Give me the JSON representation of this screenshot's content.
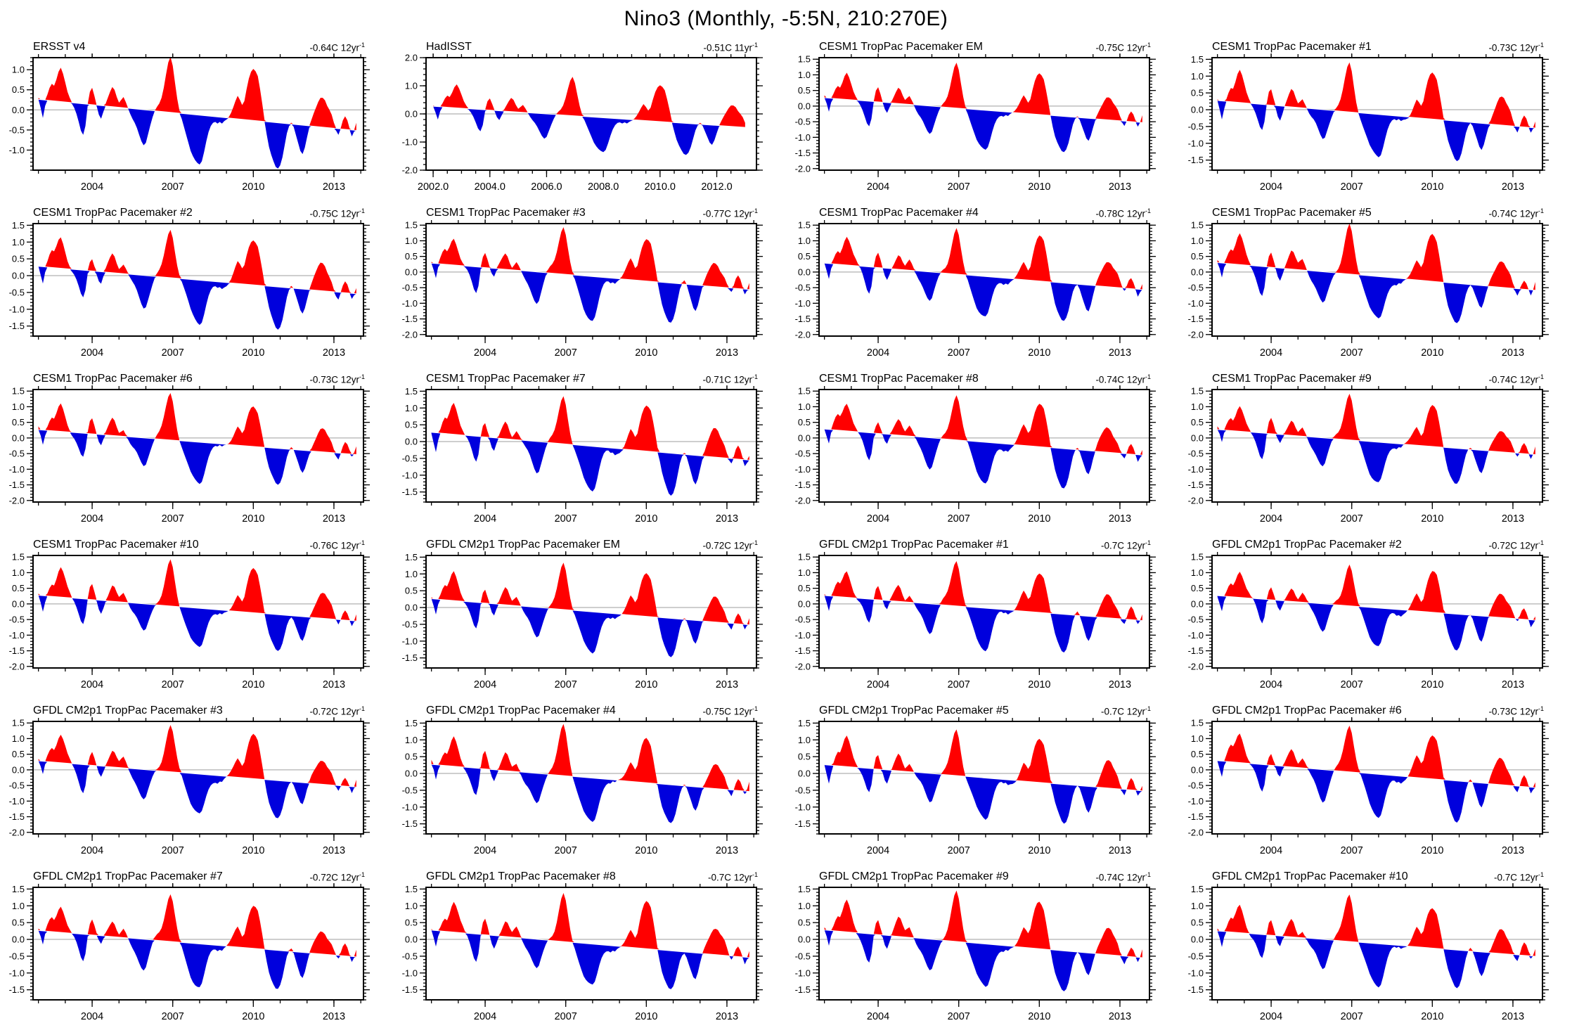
{
  "page": {
    "title": "Nino3 (Monthly, -5:5N, 210:270E)"
  },
  "chart_data": {
    "type": "area",
    "title": "Nino3 (Monthly, -5:5N, 210:270E)",
    "x_start_year": 2002.0,
    "x_step_years": 0.08333,
    "grid": "off",
    "legend": "none",
    "fill_rule": "red above linear trend line, blue below linear trend line",
    "colors": {
      "positive_fill": "#ff0000",
      "negative_fill": "#0000dd",
      "zero_line": "#b0b0b0",
      "trend_gap_line": "#ffffff",
      "frame": "#000000"
    },
    "x_axis_12yr": {
      "range": [
        2001.8,
        2014.1
      ],
      "major_ticks": [
        2004,
        2007,
        2010,
        2013
      ],
      "minor_step_years": 1,
      "label_format": "integer"
    },
    "x_axis_11yr": {
      "range": [
        2001.75,
        2013.4
      ],
      "major_ticks": [
        2002.0,
        2004.0,
        2006.0,
        2008.0,
        2010.0,
        2012.0
      ],
      "minor_step_years": 0.5,
      "label_format": "one_decimal"
    },
    "base_monthly_anomaly_C": [
      0.3,
      0.05,
      -0.2,
      0.1,
      0.38,
      0.55,
      0.65,
      0.6,
      0.75,
      0.95,
      1.05,
      0.9,
      0.68,
      0.45,
      0.3,
      0.15,
      0.05,
      -0.1,
      -0.3,
      -0.52,
      -0.62,
      -0.4,
      0.1,
      0.45,
      0.55,
      0.35,
      0.1,
      -0.12,
      -0.22,
      -0.05,
      0.15,
      0.3,
      0.45,
      0.57,
      0.5,
      0.32,
      0.18,
      0.25,
      0.32,
      0.2,
      0.05,
      -0.1,
      -0.22,
      -0.32,
      -0.45,
      -0.62,
      -0.78,
      -0.88,
      -0.82,
      -0.6,
      -0.38,
      -0.18,
      -0.02,
      0.08,
      0.16,
      0.3,
      0.55,
      0.88,
      1.18,
      1.32,
      1.1,
      0.68,
      0.28,
      -0.02,
      -0.22,
      -0.42,
      -0.62,
      -0.82,
      -1.02,
      -1.15,
      -1.25,
      -1.32,
      -1.36,
      -1.28,
      -1.05,
      -0.78,
      -0.55,
      -0.4,
      -0.32,
      -0.3,
      -0.34,
      -0.3,
      -0.34,
      -0.28,
      -0.24,
      -0.18,
      -0.08,
      0.06,
      0.22,
      0.35,
      0.25,
      0.12,
      0.22,
      0.52,
      0.78,
      0.95,
      1.02,
      0.96,
      0.84,
      0.52,
      0.15,
      -0.25,
      -0.62,
      -0.92,
      -1.12,
      -1.28,
      -1.42,
      -1.46,
      -1.38,
      -1.18,
      -0.88,
      -0.58,
      -0.4,
      -0.32,
      -0.42,
      -0.62,
      -0.82,
      -1.02,
      -1.1,
      -0.94,
      -0.68,
      -0.44,
      -0.24,
      -0.08,
      0.06,
      0.2,
      0.3,
      0.3,
      0.24,
      0.1,
      0.0,
      -0.12,
      -0.32,
      -0.52,
      -0.62,
      -0.46,
      -0.26,
      -0.16,
      -0.26,
      -0.46,
      -0.66,
      -0.54,
      -0.32
    ],
    "panels": [
      {
        "title": "ERSST v4",
        "trend": "-0.64C 12yr",
        "trend_sup": "-1",
        "x_style": "twelve",
        "months": 143,
        "scale": 1.0,
        "noise": 0.0,
        "seed": 0,
        "ylim": [
          -1.5,
          1.3
        ],
        "y_majors": [
          1.0,
          0.5,
          0.0,
          -0.5,
          -1.0
        ],
        "y_minor_step": 0.1
      },
      {
        "title": "HadISST",
        "trend": "-0.51C 11yr",
        "trend_sup": "-1",
        "x_style": "eleven",
        "months": 133,
        "scale": 1.0,
        "noise": 0.0,
        "seed": 0,
        "ylim": [
          -2.0,
          2.0
        ],
        "y_majors": [
          2.0,
          1.0,
          0.0,
          -1.0,
          -2.0
        ],
        "y_minor_step": 0.2
      },
      {
        "title": "CESM1 TropPac Pacemaker EM",
        "trend": "-0.75C 12yr",
        "trend_sup": "-1",
        "x_style": "twelve",
        "months": 143,
        "scale": 1.03,
        "noise": 0.02,
        "seed": 1,
        "ylim": [
          -2.05,
          1.55
        ],
        "y_majors": [
          1.5,
          1.0,
          0.5,
          0.0,
          -0.5,
          -1.0,
          -1.5,
          -2.0
        ],
        "y_minor_step": 0.1
      },
      {
        "title": "CESM1 TropPac Pacemaker #1",
        "trend": "-0.73C 12yr",
        "trend_sup": "-1",
        "x_style": "twelve",
        "months": 143,
        "scale": 1.08,
        "noise": 0.05,
        "seed": 2,
        "ylim": [
          -1.8,
          1.55
        ],
        "y_majors": [
          1.5,
          1.0,
          0.5,
          0.0,
          -0.5,
          -1.0,
          -1.5
        ],
        "y_minor_step": 0.1
      },
      {
        "title": "CESM1 TropPac Pacemaker #2",
        "trend": "-0.75C 12yr",
        "trend_sup": "-1",
        "x_style": "twelve",
        "months": 143,
        "scale": 1.04,
        "noise": 0.05,
        "seed": 3,
        "ylim": [
          -1.8,
          1.55
        ],
        "y_majors": [
          1.5,
          1.0,
          0.5,
          0.0,
          -0.5,
          -1.0,
          -1.5
        ],
        "y_minor_step": 0.1
      },
      {
        "title": "CESM1 TropPac Pacemaker #3",
        "trend": "-0.77C 12yr",
        "trend_sup": "-1",
        "x_style": "twelve",
        "months": 143,
        "scale": 1.1,
        "noise": 0.05,
        "seed": 4,
        "ylim": [
          -2.05,
          1.55
        ],
        "y_majors": [
          1.5,
          1.0,
          0.5,
          0.0,
          -0.5,
          -1.0,
          -1.5,
          -2.0
        ],
        "y_minor_step": 0.1
      },
      {
        "title": "CESM1 TropPac Pacemaker #4",
        "trend": "-0.78C 12yr",
        "trend_sup": "-1",
        "x_style": "twelve",
        "months": 143,
        "scale": 1.1,
        "noise": 0.05,
        "seed": 5,
        "ylim": [
          -2.05,
          1.55
        ],
        "y_majors": [
          1.5,
          1.0,
          0.5,
          0.0,
          -0.5,
          -1.0,
          -1.5,
          -2.0
        ],
        "y_minor_step": 0.1
      },
      {
        "title": "CESM1 TropPac Pacemaker #5",
        "trend": "-0.74C 12yr",
        "trend_sup": "-1",
        "x_style": "twelve",
        "months": 143,
        "scale": 1.12,
        "noise": 0.05,
        "seed": 6,
        "ylim": [
          -2.05,
          1.55
        ],
        "y_majors": [
          1.5,
          1.0,
          0.5,
          0.0,
          -0.5,
          -1.0,
          -1.5,
          -2.0
        ],
        "y_minor_step": 0.1
      },
      {
        "title": "CESM1 TropPac Pacemaker #6",
        "trend": "-0.73C 12yr",
        "trend_sup": "-1",
        "x_style": "twelve",
        "months": 143,
        "scale": 1.05,
        "noise": 0.05,
        "seed": 7,
        "ylim": [
          -2.05,
          1.55
        ],
        "y_majors": [
          1.5,
          1.0,
          0.5,
          0.0,
          -0.5,
          -1.0,
          -1.5,
          -2.0
        ],
        "y_minor_step": 0.1
      },
      {
        "title": "CESM1 TropPac Pacemaker #7",
        "trend": "-0.71C 12yr",
        "trend_sup": "-1",
        "x_style": "twelve",
        "months": 143,
        "scale": 1.09,
        "noise": 0.05,
        "seed": 8,
        "ylim": [
          -1.8,
          1.55
        ],
        "y_majors": [
          1.5,
          1.0,
          0.5,
          0.0,
          -0.5,
          -1.0,
          -1.5
        ],
        "y_minor_step": 0.1
      },
      {
        "title": "CESM1 TropPac Pacemaker #8",
        "trend": "-0.74C 12yr",
        "trend_sup": "-1",
        "x_style": "twelve",
        "months": 143,
        "scale": 1.05,
        "noise": 0.05,
        "seed": 9,
        "ylim": [
          -2.05,
          1.55
        ],
        "y_majors": [
          1.5,
          1.0,
          0.5,
          0.0,
          -0.5,
          -1.0,
          -1.5,
          -2.0
        ],
        "y_minor_step": 0.1
      },
      {
        "title": "CESM1 TropPac Pacemaker #9",
        "trend": "-0.74C 12yr",
        "trend_sup": "-1",
        "x_style": "twelve",
        "months": 143,
        "scale": 1.04,
        "noise": 0.05,
        "seed": 10,
        "ylim": [
          -2.05,
          1.55
        ],
        "y_majors": [
          1.5,
          1.0,
          0.5,
          0.0,
          -0.5,
          -1.0,
          -1.5,
          -2.0
        ],
        "y_minor_step": 0.1
      },
      {
        "title": "CESM1 TropPac Pacemaker #10",
        "trend": "-0.76C 12yr",
        "trend_sup": "-1",
        "x_style": "twelve",
        "months": 143,
        "scale": 1.08,
        "noise": 0.05,
        "seed": 11,
        "ylim": [
          -2.05,
          1.55
        ],
        "y_majors": [
          1.5,
          1.0,
          0.5,
          0.0,
          -0.5,
          -1.0,
          -1.5,
          -2.0
        ],
        "y_minor_step": 0.1
      },
      {
        "title": "GFDL CM2p1 TropPac Pacemaker EM",
        "trend": "-0.72C 12yr",
        "trend_sup": "-1",
        "x_style": "twelve",
        "months": 143,
        "scale": 1.0,
        "noise": 0.02,
        "seed": 12,
        "ylim": [
          -1.8,
          1.55
        ],
        "y_majors": [
          1.5,
          1.0,
          0.5,
          0.0,
          -0.5,
          -1.0,
          -1.5
        ],
        "y_minor_step": 0.1
      },
      {
        "title": "GFDL CM2p1 TropPac Pacemaker #1",
        "trend": "-0.7C 12yr",
        "trend_sup": "-1",
        "x_style": "twelve",
        "months": 143,
        "scale": 1.05,
        "noise": 0.05,
        "seed": 13,
        "ylim": [
          -2.05,
          1.55
        ],
        "y_majors": [
          1.5,
          1.0,
          0.5,
          0.0,
          -0.5,
          -1.0,
          -1.5,
          -2.0
        ],
        "y_minor_step": 0.1
      },
      {
        "title": "GFDL CM2p1 TropPac Pacemaker #2",
        "trend": "-0.72C 12yr",
        "trend_sup": "-1",
        "x_style": "twelve",
        "months": 143,
        "scale": 1.02,
        "noise": 0.05,
        "seed": 14,
        "ylim": [
          -2.05,
          1.55
        ],
        "y_majors": [
          1.5,
          1.0,
          0.5,
          0.0,
          -0.5,
          -1.0,
          -1.5,
          -2.0
        ],
        "y_minor_step": 0.1
      },
      {
        "title": "GFDL CM2p1 TropPac Pacemaker #3",
        "trend": "-0.72C 12yr",
        "trend_sup": "-1",
        "x_style": "twelve",
        "months": 143,
        "scale": 1.05,
        "noise": 0.05,
        "seed": 15,
        "ylim": [
          -2.05,
          1.55
        ],
        "y_majors": [
          1.5,
          1.0,
          0.5,
          0.0,
          -0.5,
          -1.0,
          -1.5,
          -2.0
        ],
        "y_minor_step": 0.1
      },
      {
        "title": "GFDL CM2p1 TropPac Pacemaker #4",
        "trend": "-0.75C 12yr",
        "trend_sup": "-1",
        "x_style": "twelve",
        "months": 143,
        "scale": 1.06,
        "noise": 0.05,
        "seed": 16,
        "ylim": [
          -1.8,
          1.55
        ],
        "y_majors": [
          1.5,
          1.0,
          0.5,
          0.0,
          -0.5,
          -1.0,
          -1.5
        ],
        "y_minor_step": 0.1
      },
      {
        "title": "GFDL CM2p1 TropPac Pacemaker #5",
        "trend": "-0.7C 12yr",
        "trend_sup": "-1",
        "x_style": "twelve",
        "months": 143,
        "scale": 1.03,
        "noise": 0.05,
        "seed": 17,
        "ylim": [
          -1.8,
          1.55
        ],
        "y_majors": [
          1.5,
          1.0,
          0.5,
          0.0,
          -0.5,
          -1.0,
          -1.5
        ],
        "y_minor_step": 0.1
      },
      {
        "title": "GFDL CM2p1 TropPac Pacemaker #6",
        "trend": "-0.73C 12yr",
        "trend_sup": "-1",
        "x_style": "twelve",
        "months": 143,
        "scale": 1.09,
        "noise": 0.05,
        "seed": 18,
        "ylim": [
          -2.05,
          1.55
        ],
        "y_majors": [
          1.5,
          1.0,
          0.5,
          0.0,
          -0.5,
          -1.0,
          -1.5,
          -2.0
        ],
        "y_minor_step": 0.1
      },
      {
        "title": "GFDL CM2p1 TropPac Pacemaker #7",
        "trend": "-0.72C 12yr",
        "trend_sup": "-1",
        "x_style": "twelve",
        "months": 143,
        "scale": 1.02,
        "noise": 0.05,
        "seed": 19,
        "ylim": [
          -1.8,
          1.55
        ],
        "y_majors": [
          1.5,
          1.0,
          0.5,
          0.0,
          -0.5,
          -1.0,
          -1.5
        ],
        "y_minor_step": 0.1
      },
      {
        "title": "GFDL CM2p1 TropPac Pacemaker #8",
        "trend": "-0.7C 12yr",
        "trend_sup": "-1",
        "x_style": "twelve",
        "months": 143,
        "scale": 1.06,
        "noise": 0.05,
        "seed": 20,
        "ylim": [
          -1.8,
          1.55
        ],
        "y_majors": [
          1.5,
          1.0,
          0.5,
          0.0,
          -0.5,
          -1.0,
          -1.5
        ],
        "y_minor_step": 0.1
      },
      {
        "title": "GFDL CM2p1 TropPac Pacemaker #9",
        "trend": "-0.74C 12yr",
        "trend_sup": "-1",
        "x_style": "twelve",
        "months": 143,
        "scale": 1.05,
        "noise": 0.05,
        "seed": 21,
        "ylim": [
          -1.8,
          1.55
        ],
        "y_majors": [
          1.5,
          1.0,
          0.5,
          0.0,
          -0.5,
          -1.0,
          -1.5
        ],
        "y_minor_step": 0.1
      },
      {
        "title": "GFDL CM2p1 TropPac Pacemaker #10",
        "trend": "-0.7C 12yr",
        "trend_sup": "-1",
        "x_style": "twelve",
        "months": 143,
        "scale": 1.0,
        "noise": 0.05,
        "seed": 22,
        "ylim": [
          -1.8,
          1.55
        ],
        "y_majors": [
          1.5,
          1.0,
          0.5,
          0.0,
          -0.5,
          -1.0,
          -1.5
        ],
        "y_minor_step": 0.1
      }
    ]
  }
}
